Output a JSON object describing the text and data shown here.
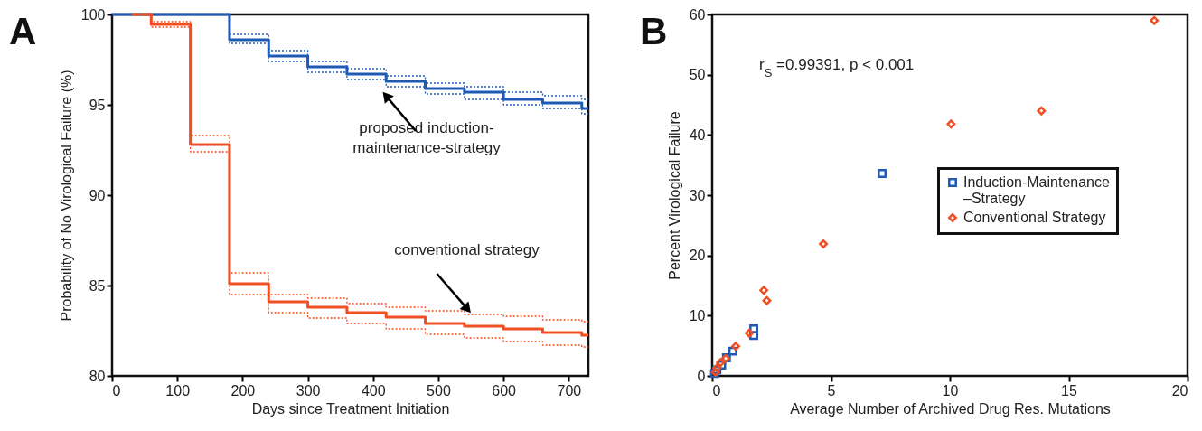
{
  "chart_data": [
    {
      "type": "step",
      "title": "A",
      "xlabel": "Days since Treatment Initiation",
      "ylabel": "Probability of No Virological Failure (%)",
      "xlim": [
        0,
        730
      ],
      "xticks": [
        0,
        100,
        200,
        300,
        400,
        500,
        600,
        700
      ],
      "ylim": [
        80,
        100
      ],
      "yticks": [
        80,
        85,
        90,
        95,
        100
      ],
      "marker": "none",
      "series": [
        {
          "color": "#1f5bb4",
          "line_style": "solid",
          "x": [
            0,
            180,
            240,
            300,
            360,
            420,
            480,
            540,
            600,
            660,
            720,
            730
          ],
          "values": [
            100,
            98.6,
            97.7,
            97.1,
            96.7,
            96.3,
            95.9,
            95.7,
            95.3,
            95.1,
            94.8,
            94.8
          ]
        },
        {
          "color": "#1f5bb4",
          "line_style": "dotted",
          "x": [
            0,
            180,
            240,
            300,
            360,
            420,
            480,
            540,
            600,
            660,
            720,
            730
          ],
          "values": [
            100,
            98.9,
            98.0,
            97.4,
            97.0,
            96.6,
            96.2,
            96.0,
            95.7,
            95.5,
            95.3,
            95.3
          ]
        },
        {
          "color": "#1f5bb4",
          "line_style": "dotted",
          "x": [
            0,
            180,
            240,
            300,
            360,
            420,
            480,
            540,
            600,
            660,
            720,
            730
          ],
          "values": [
            100,
            98.4,
            97.4,
            96.8,
            96.4,
            96.0,
            95.6,
            95.3,
            95.0,
            94.8,
            94.5,
            94.5
          ]
        },
        {
          "color": "#f04e23",
          "line_style": "solid",
          "x": [
            30,
            60,
            120,
            180,
            240,
            300,
            360,
            420,
            480,
            540,
            600,
            660,
            720,
            730
          ],
          "values": [
            100,
            99.45,
            92.8,
            85.1,
            84.1,
            83.8,
            83.5,
            83.25,
            82.9,
            82.75,
            82.6,
            82.4,
            82.25,
            82.25
          ]
        },
        {
          "color": "#f04e23",
          "line_style": "dotted",
          "x": [
            30,
            60,
            120,
            180,
            240,
            300,
            360,
            420,
            480,
            540,
            600,
            660,
            720,
            730
          ],
          "values": [
            100,
            99.6,
            93.3,
            85.7,
            84.5,
            84.3,
            84.0,
            83.8,
            83.6,
            83.4,
            83.3,
            83.1,
            83.0,
            83.0
          ]
        },
        {
          "color": "#f04e23",
          "line_style": "dotted",
          "x": [
            30,
            60,
            120,
            180,
            240,
            300,
            360,
            420,
            480,
            540,
            600,
            660,
            720,
            730
          ],
          "values": [
            100,
            99.3,
            92.4,
            84.5,
            83.5,
            83.2,
            82.9,
            82.6,
            82.3,
            82.1,
            81.9,
            81.7,
            81.6,
            81.6
          ]
        }
      ],
      "annotations": [
        "proposed induction-\nmaintenance-strategy",
        {
          "text": "conventional strategy",
          "x": 552,
          "y": 83.4
        }
      ]
    },
    {
      "type": "scatter",
      "title": "B",
      "xlabel": "Average Number of Archived Drug Res. Mutations",
      "ylabel": "Percent Virological  Failure",
      "xlim": [
        0,
        20
      ],
      "xticks": [
        0,
        5,
        10,
        15,
        20
      ],
      "ylim": [
        0,
        60
      ],
      "yticks": [
        0,
        10,
        20,
        30,
        40,
        50,
        60
      ],
      "legend": "right",
      "series": [
        {
          "name": "Induction-Maintenance\n–Strategy",
          "color": "#1f5bb4",
          "marker": "square",
          "x": [
            7.15,
            1.75,
            1.75,
            0.87,
            0.6,
            0.4,
            0.2,
            0.1
          ],
          "values": [
            33.6,
            7.8,
            6.7,
            4.1,
            3.0,
            1.8,
            1.0,
            0.4
          ]
        },
        {
          "name": "Conventional Strategy",
          "color": "#f04e23",
          "marker": "diamond",
          "x": [
            18.6,
            13.85,
            10.05,
            4.68,
            2.17,
            2.3,
            1.56,
            0.99,
            0.57,
            0.35,
            0.2,
            0.14
          ],
          "values": [
            59,
            44,
            41.8,
            21.9,
            14.2,
            12.5,
            7.1,
            4.9,
            2.9,
            2.2,
            1.3,
            0.6
          ]
        }
      ],
      "annotations": [
        "r$_{S}$ =0.99391, p < 0.001"
      ]
    }
  ]
}
